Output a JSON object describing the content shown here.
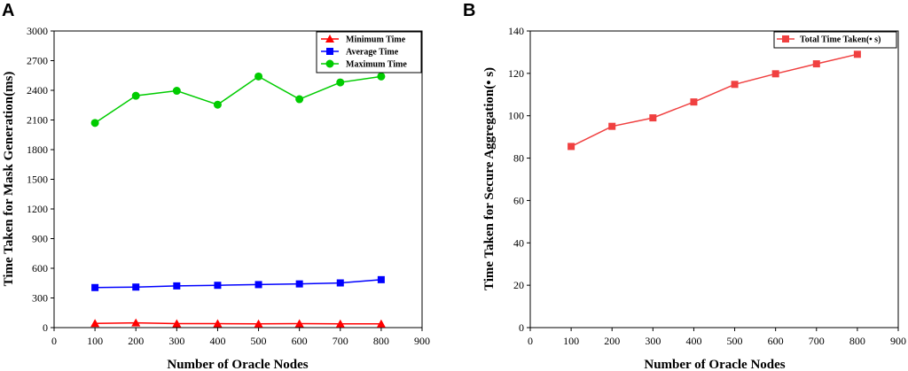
{
  "chart_data": [
    {
      "panel": "A",
      "type": "line",
      "xlabel": "Number of Oracle Nodes",
      "ylabel": "Time Taken for Mask Generation(ms)",
      "xlim": [
        0,
        900
      ],
      "ylim": [
        0,
        3000
      ],
      "xticks": [
        0,
        100,
        200,
        300,
        400,
        500,
        600,
        700,
        800,
        900
      ],
      "yticks": [
        0,
        300,
        600,
        900,
        1200,
        1500,
        1800,
        2100,
        2400,
        2700,
        3000
      ],
      "legend_position": "top-right",
      "x": [
        100,
        200,
        300,
        400,
        500,
        600,
        700,
        800
      ],
      "series": [
        {
          "name": "Minimum Time",
          "color": "#ff0000",
          "marker": "triangle",
          "values": [
            42,
            48,
            40,
            40,
            38,
            40,
            38,
            38
          ]
        },
        {
          "name": "Average Time",
          "color": "#0000ff",
          "marker": "square",
          "values": [
            405,
            410,
            422,
            428,
            435,
            442,
            452,
            485
          ]
        },
        {
          "name": "Maximum Time",
          "color": "#00cc00",
          "marker": "circle",
          "values": [
            2070,
            2345,
            2395,
            2255,
            2540,
            2310,
            2480,
            2540
          ]
        }
      ]
    },
    {
      "panel": "B",
      "type": "line",
      "xlabel": "Number of Oracle Nodes",
      "ylabel": "Time Taken for Secure Aggregation(• s)",
      "xlim": [
        0,
        900
      ],
      "ylim": [
        0,
        140
      ],
      "xticks": [
        0,
        100,
        200,
        300,
        400,
        500,
        600,
        700,
        800,
        900
      ],
      "yticks": [
        0,
        20,
        40,
        60,
        80,
        100,
        120,
        140
      ],
      "legend_position": "top-right",
      "x": [
        100,
        200,
        300,
        400,
        500,
        600,
        700,
        800
      ],
      "series": [
        {
          "name": "Total Time Taken(• s)",
          "color": "#f04040",
          "marker": "square",
          "values": [
            85.5,
            95,
            99,
            106.5,
            114.8,
            119.8,
            124.5,
            129
          ]
        }
      ]
    }
  ]
}
